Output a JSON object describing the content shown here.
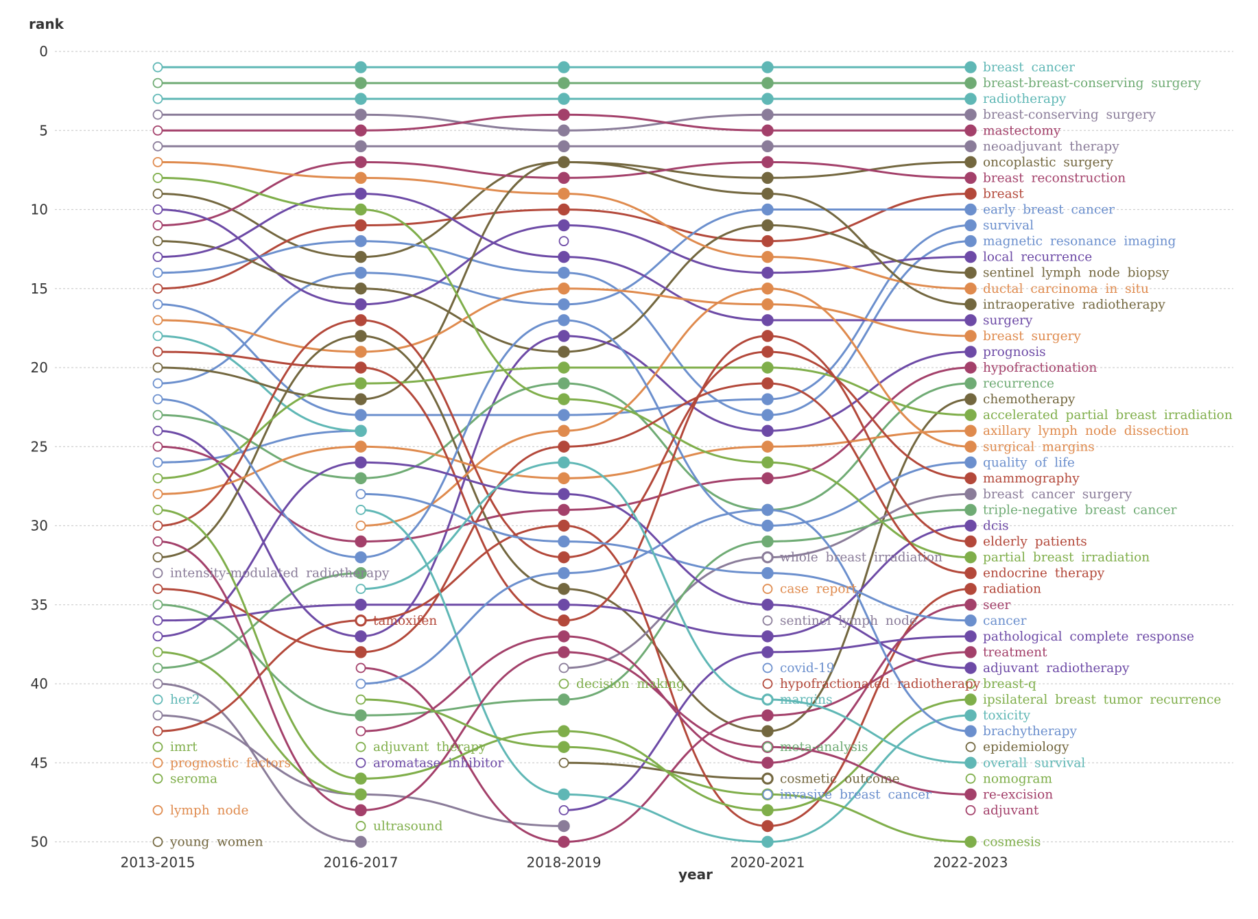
{
  "chart_data": {
    "type": "line",
    "title": "",
    "xlabel": "year",
    "ylabel": "rank",
    "categories": [
      "2013-2015",
      "2016-2017",
      "2018-2019",
      "2020-2021",
      "2022-2023"
    ],
    "y_ticks": [
      0,
      5,
      10,
      15,
      20,
      25,
      30,
      35,
      40,
      45,
      50
    ],
    "y_tick_labels": [
      "0",
      "5",
      "10",
      "15",
      "20",
      "25",
      "30",
      "35",
      "40",
      "45",
      "50"
    ],
    "ylim": [
      0,
      50
    ],
    "y_reversed": true,
    "grid": "horizontal dotted",
    "series": [
      {
        "name": "breast cancer",
        "color": "#5fb7b5",
        "ranks": [
          1,
          1,
          1,
          1,
          1
        ],
        "label_period": 4
      },
      {
        "name": "breast-breast-conserving surgery",
        "color": "#6fab74",
        "ranks": [
          2,
          2,
          2,
          2,
          2
        ],
        "label_period": 4
      },
      {
        "name": "radiotherapy",
        "color": "#5fb7b5",
        "ranks": [
          3,
          3,
          3,
          3,
          3
        ],
        "label_period": 4
      },
      {
        "name": "breast-conserving surgery",
        "color": "#8a7c99",
        "ranks": [
          4,
          4,
          5,
          4,
          4
        ],
        "label_period": 4
      },
      {
        "name": "mastectomy",
        "color": "#a3406a",
        "ranks": [
          5,
          5,
          4,
          5,
          5
        ],
        "label_period": 4
      },
      {
        "name": "neoadjuvant therapy",
        "color": "#8a7c99",
        "ranks": [
          6,
          6,
          6,
          6,
          6
        ],
        "label_period": 4
      },
      {
        "name": "oncoplastic surgery",
        "color": "#73673f",
        "ranks": [
          9,
          13,
          7,
          8,
          7
        ],
        "label_period": 4
      },
      {
        "name": "breast reconstruction",
        "color": "#a3406a",
        "ranks": [
          11,
          7,
          8,
          7,
          8
        ],
        "label_period": 4
      },
      {
        "name": "breast",
        "color": "#b3483a",
        "ranks": [
          15,
          11,
          10,
          12,
          9
        ],
        "label_period": 4
      },
      {
        "name": "early breast cancer",
        "color": "#6b8fcd",
        "ranks": [
          21,
          14,
          16,
          10,
          10
        ],
        "label_period": 4
      },
      {
        "name": "survival",
        "color": "#6b8fcd",
        "ranks": [
          16,
          23,
          23,
          22,
          11
        ],
        "label_period": 4
      },
      {
        "name": "magnetic resonance imaging",
        "color": "#6b8fcd",
        "ranks": [
          14,
          12,
          14,
          23,
          12
        ],
        "label_period": 4
      },
      {
        "name": "local recurrence",
        "color": "#6d4aa6",
        "ranks": [
          10,
          16,
          11,
          14,
          13
        ],
        "label_period": 4
      },
      {
        "name": "sentinel lymph node biopsy",
        "color": "#73673f",
        "ranks": [
          12,
          15,
          19,
          11,
          14
        ],
        "label_period": 4
      },
      {
        "name": "ductal carcinoma in situ",
        "color": "#df8a4d",
        "ranks": [
          7,
          8,
          9,
          13,
          15
        ],
        "label_period": 4
      },
      {
        "name": "intraoperative radiotherapy",
        "color": "#73673f",
        "ranks": [
          20,
          22,
          7,
          9,
          16
        ],
        "label_period": 4
      },
      {
        "name": "surgery",
        "color": "#6d4aa6",
        "ranks": [
          13,
          9,
          13,
          17,
          17
        ],
        "label_period": 4
      },
      {
        "name": "breast surgery",
        "color": "#df8a4d",
        "ranks": [
          17,
          19,
          15,
          16,
          18
        ],
        "label_period": 4
      },
      {
        "name": "prognosis",
        "color": "#6d4aa6",
        "ranks": [
          24,
          37,
          18,
          24,
          19
        ],
        "label_period": 4
      },
      {
        "name": "hypofractionation",
        "color": "#a3406a",
        "ranks": [
          25,
          31,
          29,
          27,
          20
        ],
        "label_period": 4
      },
      {
        "name": "recurrence",
        "color": "#6fab74",
        "ranks": [
          23,
          27,
          21,
          29,
          21
        ],
        "label_period": 4
      },
      {
        "name": "chemotherapy",
        "color": "#73673f",
        "ranks": [
          32,
          18,
          34,
          43,
          22
        ],
        "label_period": 4
      },
      {
        "name": "accelerated partial breast irradiation",
        "color": "#7fae4a",
        "ranks": [
          27,
          21,
          20,
          20,
          23
        ],
        "label_period": 4
      },
      {
        "name": "axillary lymph node dissection",
        "color": "#df8a4d",
        "ranks": [
          28,
          25,
          27,
          25,
          24
        ],
        "label_period": 4
      },
      {
        "name": "surgical margins",
        "color": "#df8a4d",
        "ranks": [
          null,
          30,
          24,
          15,
          25
        ],
        "label_period": 4
      },
      {
        "name": "quality of life",
        "color": "#6b8fcd",
        "ranks": [
          22,
          32,
          17,
          30,
          26
        ],
        "label_period": 4
      },
      {
        "name": "mammography",
        "color": "#b3483a",
        "ranks": [
          30,
          17,
          32,
          19,
          27
        ],
        "label_period": 4
      },
      {
        "name": "breast cancer surgery",
        "color": "#8a7c99",
        "ranks": [
          null,
          null,
          39,
          32,
          28
        ],
        "label_period": 4
      },
      {
        "name": "triple-negative breast cancer",
        "color": "#6fab74",
        "ranks": [
          35,
          42,
          41,
          31,
          29
        ],
        "label_period": 4
      },
      {
        "name": "dcis",
        "color": "#6d4aa6",
        "ranks": [
          36,
          35,
          35,
          37,
          30
        ],
        "label_period": 4
      },
      {
        "name": "elderly patients",
        "color": "#b3483a",
        "ranks": [
          19,
          20,
          36,
          18,
          31
        ],
        "label_period": 4
      },
      {
        "name": "partial breast irradiation",
        "color": "#7fae4a",
        "ranks": [
          8,
          10,
          22,
          26,
          32
        ],
        "label_period": 4
      },
      {
        "name": "endocrine therapy",
        "color": "#b3483a",
        "ranks": [
          34,
          38,
          25,
          21,
          33
        ],
        "label_period": 4
      },
      {
        "name": "radiation",
        "color": "#b3483a",
        "ranks": [
          43,
          36,
          30,
          49,
          34
        ],
        "label_period": 4
      },
      {
        "name": "seer",
        "color": "#a3406a",
        "ranks": [
          null,
          43,
          37,
          45,
          35
        ],
        "label_period": 4
      },
      {
        "name": "cancer",
        "color": "#6b8fcd",
        "ranks": [
          null,
          28,
          31,
          33,
          36
        ],
        "label_period": 4
      },
      {
        "name": "pathological complete response",
        "color": "#6d4aa6",
        "ranks": [
          null,
          null,
          48,
          38,
          37
        ],
        "label_period": 4
      },
      {
        "name": "treatment",
        "color": "#a3406a",
        "ranks": [
          null,
          39,
          50,
          42,
          38
        ],
        "label_period": 4
      },
      {
        "name": "adjuvant radiotherapy",
        "color": "#6d4aa6",
        "ranks": [
          37,
          26,
          28,
          35,
          39
        ],
        "label_period": 4
      },
      {
        "name": "breast-q",
        "color": "#7fae4a",
        "ranks": [
          null,
          null,
          null,
          null,
          40
        ],
        "label_period": 4
      },
      {
        "name": "ipsilateral breast tumor recurrence",
        "color": "#7fae4a",
        "ranks": [
          29,
          46,
          43,
          48,
          41
        ],
        "label_period": 4
      },
      {
        "name": "toxicity",
        "color": "#5fb7b5",
        "ranks": [
          null,
          29,
          47,
          50,
          42
        ],
        "label_period": 4
      },
      {
        "name": "brachytherapy",
        "color": "#6b8fcd",
        "ranks": [
          null,
          40,
          33,
          29,
          43
        ],
        "label_period": 4
      },
      {
        "name": "epidemiology",
        "color": "#73673f",
        "ranks": [
          null,
          null,
          null,
          null,
          44
        ],
        "label_period": 4
      },
      {
        "name": "overall survival",
        "color": "#5fb7b5",
        "ranks": [
          null,
          34,
          26,
          41,
          45
        ],
        "label_period": 4
      },
      {
        "name": "nomogram",
        "color": "#7fae4a",
        "ranks": [
          null,
          null,
          null,
          null,
          46
        ],
        "label_period": 4
      },
      {
        "name": "re-excision",
        "color": "#a3406a",
        "ranks": [
          31,
          48,
          38,
          44,
          47
        ],
        "label_period": 4
      },
      {
        "name": "adjuvant",
        "color": "#a3406a",
        "ranks": [
          null,
          null,
          null,
          null,
          48
        ],
        "label_period": 4
      },
      {
        "name": "cosmesis",
        "color": "#7fae4a",
        "ranks": [
          null,
          41,
          44,
          47,
          50
        ],
        "label_period": 4
      },
      {
        "name": "intensity-modulated radiotherapy",
        "color": "#8a7c99",
        "ranks": [
          33,
          null,
          null,
          null,
          null
        ],
        "label_period": 0
      },
      {
        "name": "her2",
        "color": "#5fb7b5",
        "ranks": [
          41,
          null,
          null,
          null,
          null
        ],
        "label_period": 0
      },
      {
        "name": "imrt",
        "color": "#7fae4a",
        "ranks": [
          44,
          null,
          null,
          null,
          null
        ],
        "label_period": 0
      },
      {
        "name": "prognostic factors",
        "color": "#df8a4d",
        "ranks": [
          45,
          null,
          null,
          null,
          null
        ],
        "label_period": 0
      },
      {
        "name": "seroma",
        "color": "#7fae4a",
        "ranks": [
          46,
          null,
          null,
          null,
          null
        ],
        "label_period": 0
      },
      {
        "name": "lymph node",
        "color": "#df8a4d",
        "ranks": [
          48,
          null,
          null,
          null,
          null
        ],
        "label_period": 0
      },
      {
        "name": "young women",
        "color": "#73673f",
        "ranks": [
          50,
          null,
          null,
          null,
          null
        ],
        "label_period": 0
      },
      {
        "name": "tamoxifen",
        "color": "#b3483a",
        "ranks": [
          null,
          36,
          null,
          null,
          null
        ],
        "label_period": 1
      },
      {
        "name": "adjuvant therapy",
        "color": "#7fae4a",
        "ranks": [
          null,
          44,
          null,
          null,
          null
        ],
        "label_period": 1
      },
      {
        "name": "aromatase inhibitor",
        "color": "#6d4aa6",
        "ranks": [
          null,
          45,
          null,
          null,
          null
        ],
        "label_period": 1
      },
      {
        "name": "ultrasound",
        "color": "#7fae4a",
        "ranks": [
          null,
          49,
          null,
          null,
          null
        ],
        "label_period": 1
      },
      {
        "name": "decision making",
        "color": "#7fae4a",
        "ranks": [
          null,
          null,
          40,
          null,
          null
        ],
        "label_period": 2
      },
      {
        "name": "whole breast irradiation",
        "color": "#8a7c99",
        "ranks": [
          null,
          null,
          null,
          32,
          null
        ],
        "label_period": 3
      },
      {
        "name": "case report",
        "color": "#df8a4d",
        "ranks": [
          null,
          null,
          null,
          34,
          null
        ],
        "label_period": 3
      },
      {
        "name": "sentinel lymph node",
        "color": "#8a7c99",
        "ranks": [
          null,
          null,
          null,
          36,
          null
        ],
        "label_period": 3
      },
      {
        "name": "covid-19",
        "color": "#6b8fcd",
        "ranks": [
          null,
          null,
          null,
          39,
          null
        ],
        "label_period": 3
      },
      {
        "name": "hypofractionated radiotherapy",
        "color": "#b3483a",
        "ranks": [
          null,
          null,
          null,
          40,
          null
        ],
        "label_period": 3
      },
      {
        "name": "margins",
        "color": "#5fb7b5",
        "ranks": [
          null,
          null,
          null,
          41,
          null
        ],
        "label_period": 3
      },
      {
        "name": "meta-analysis",
        "color": "#6fab74",
        "ranks": [
          null,
          null,
          null,
          44,
          null
        ],
        "label_period": 3
      },
      {
        "name": "cosmetic outcome",
        "color": "#73673f",
        "ranks": [
          null,
          null,
          null,
          46,
          null
        ],
        "label_period": 3
      },
      {
        "name": "invasive breast cancer",
        "color": "#6b8fcd",
        "ranks": [
          null,
          null,
          null,
          47,
          null
        ],
        "label_period": 3
      }
    ],
    "unlabeled_segments": [
      {
        "color": "#6b8fcd",
        "ranks": [
          26,
          24,
          null,
          null,
          null
        ]
      },
      {
        "color": "#6fab74",
        "ranks": [
          39,
          33,
          null,
          null,
          null
        ]
      },
      {
        "color": "#8a7c99",
        "ranks": [
          42,
          47,
          49,
          null,
          null
        ]
      },
      {
        "color": "#8a7c99",
        "ranks": [
          40,
          50,
          null,
          null,
          null
        ]
      },
      {
        "color": "#5fb7b5",
        "ranks": [
          18,
          24,
          null,
          null,
          null
        ]
      },
      {
        "color": "#7fae4a",
        "ranks": [
          38,
          47,
          null,
          null,
          null
        ]
      },
      {
        "color": "#73673f",
        "ranks": [
          null,
          null,
          45,
          46,
          null
        ]
      },
      {
        "color": "#6d4aa6",
        "ranks": [
          null,
          null,
          12,
          null,
          null
        ]
      }
    ]
  }
}
